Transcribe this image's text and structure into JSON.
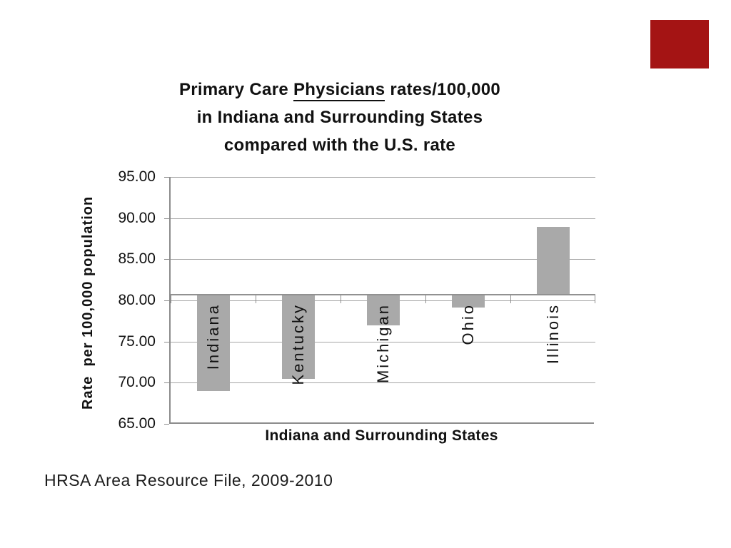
{
  "slide": {
    "background_color": "#FFFFFF",
    "accent_square_color": "#A41414",
    "title": {
      "line1_pre": "Primary Care ",
      "line1_underlined": "Physicians",
      "line1_post": " rates/100,000",
      "line2": "in Indiana and Surrounding States",
      "line3": "compared with the U.S. rate"
    },
    "source": "HRSA Area Resource File, 2009-2010"
  },
  "chart_data": {
    "type": "bar",
    "title": "",
    "categories": [
      "Indiana",
      "Kentucky",
      "Michigan",
      "Ohio",
      "Illinois"
    ],
    "values": [
      69.0,
      70.5,
      77.0,
      79.1,
      88.9
    ],
    "baseline_value": 80.7,
    "baseline_label": "U.S. rate",
    "ylabel": "Rate  per 100,000 population",
    "xlabel": "Indiana and Surrounding States",
    "ylim": [
      65,
      95
    ],
    "ytick_step": 5,
    "ytick_labels": [
      "95.00",
      "90.00",
      "85.00",
      "80.00",
      "75.00",
      "70.00",
      "65.00"
    ],
    "grid": true,
    "legend": false,
    "bar_color": "#A9A9A9",
    "gridline_color": "#A6A6A6",
    "axis_color": "#8C8C8C"
  }
}
